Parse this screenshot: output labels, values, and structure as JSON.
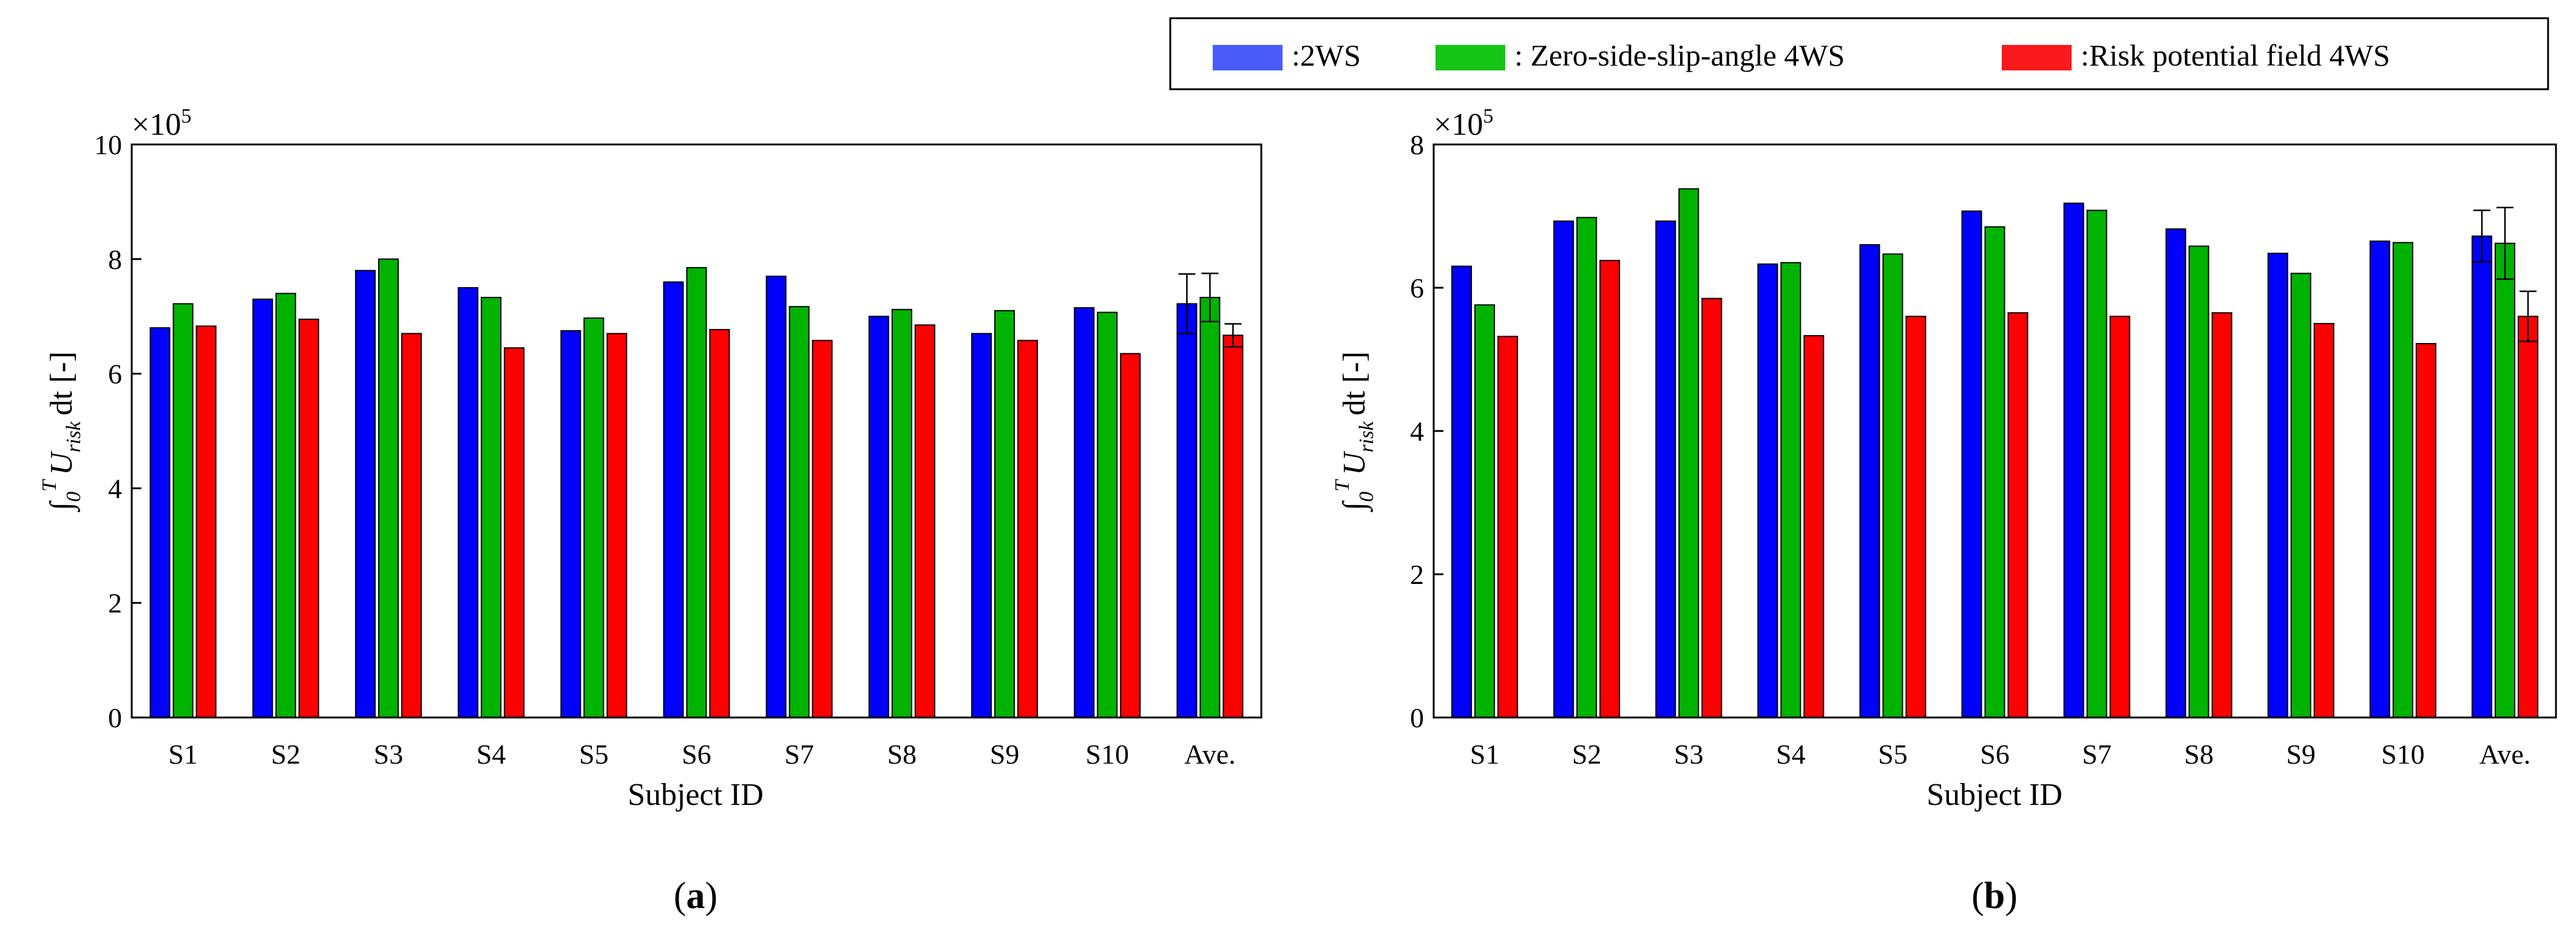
{
  "legend": {
    "items": [
      {
        "label": ":2WS",
        "color": "#0000ff"
      },
      {
        "label": ": Zero-side-slip-angle 4WS",
        "color": "#00b300"
      },
      {
        "label": ":Risk potential field 4WS",
        "color": "#ff0000"
      }
    ],
    "swatch_colors": [
      "#4a5cf8",
      "#16c616",
      "#f8191c"
    ]
  },
  "chart_data": [
    {
      "type": "bar",
      "panel": "a",
      "caption_letter": "a",
      "categories": [
        "S1",
        "S2",
        "S3",
        "S4",
        "S5",
        "S6",
        "S7",
        "S8",
        "S9",
        "S10",
        "Ave."
      ],
      "xlabel": "Subject ID",
      "ylabel": "∫0T Urisk dt [-]",
      "ylabel_parts": {
        "integral": "∫",
        "lower": "0",
        "upper": "T",
        "u": "U",
        "sub": "risk",
        "rest": "dt [-]"
      },
      "yscale_label": {
        "base": "×10",
        "exp": "5"
      },
      "ylim": [
        0,
        10
      ],
      "yticks": [
        0,
        2,
        4,
        6,
        8,
        10
      ],
      "series": [
        {
          "name": "2WS",
          "values": [
            6.8,
            7.3,
            7.8,
            7.5,
            6.75,
            7.6,
            7.7,
            7.0,
            6.7,
            7.15,
            7.22
          ],
          "errors": [
            null,
            null,
            null,
            null,
            null,
            null,
            null,
            null,
            null,
            null,
            0.52
          ]
        },
        {
          "name": "Zero-side-slip-angle 4WS",
          "values": [
            7.22,
            7.4,
            8.0,
            7.33,
            6.97,
            7.85,
            7.17,
            7.12,
            7.1,
            7.07,
            7.33
          ],
          "errors": [
            null,
            null,
            null,
            null,
            null,
            null,
            null,
            null,
            null,
            null,
            0.42
          ]
        },
        {
          "name": "Risk potential field 4WS",
          "values": [
            6.83,
            6.95,
            6.7,
            6.45,
            6.7,
            6.77,
            6.58,
            6.85,
            6.58,
            6.35,
            6.67
          ],
          "errors": [
            null,
            null,
            null,
            null,
            null,
            null,
            null,
            null,
            null,
            null,
            0.2
          ]
        }
      ]
    },
    {
      "type": "bar",
      "panel": "b",
      "caption_letter": "b",
      "categories": [
        "S1",
        "S2",
        "S3",
        "S4",
        "S5",
        "S6",
        "S7",
        "S8",
        "S9",
        "S10",
        "Ave."
      ],
      "xlabel": "Subject ID",
      "ylabel": "∫0T Urisk dt [-]",
      "ylabel_parts": {
        "integral": "∫",
        "lower": "0",
        "upper": "T",
        "u": "U",
        "sub": "risk",
        "rest": "dt [-]"
      },
      "yscale_label": {
        "base": "×10",
        "exp": "5"
      },
      "ylim": [
        0,
        8
      ],
      "yticks": [
        0,
        2,
        4,
        6,
        8
      ],
      "series": [
        {
          "name": "2WS",
          "values": [
            6.3,
            6.93,
            6.93,
            6.33,
            6.6,
            7.07,
            7.18,
            6.82,
            6.48,
            6.65,
            6.72
          ],
          "errors": [
            null,
            null,
            null,
            null,
            null,
            null,
            null,
            null,
            null,
            null,
            0.36
          ]
        },
        {
          "name": "Zero-side-slip-angle 4WS",
          "values": [
            5.76,
            6.98,
            7.38,
            6.35,
            6.47,
            6.85,
            7.08,
            6.58,
            6.2,
            6.63,
            6.62
          ],
          "errors": [
            null,
            null,
            null,
            null,
            null,
            null,
            null,
            null,
            null,
            null,
            0.5
          ]
        },
        {
          "name": "Risk potential field 4WS",
          "values": [
            5.32,
            6.38,
            5.85,
            5.33,
            5.6,
            5.65,
            5.6,
            5.65,
            5.5,
            5.22,
            5.6
          ],
          "errors": [
            null,
            null,
            null,
            null,
            null,
            null,
            null,
            null,
            null,
            null,
            0.35
          ]
        }
      ]
    }
  ]
}
